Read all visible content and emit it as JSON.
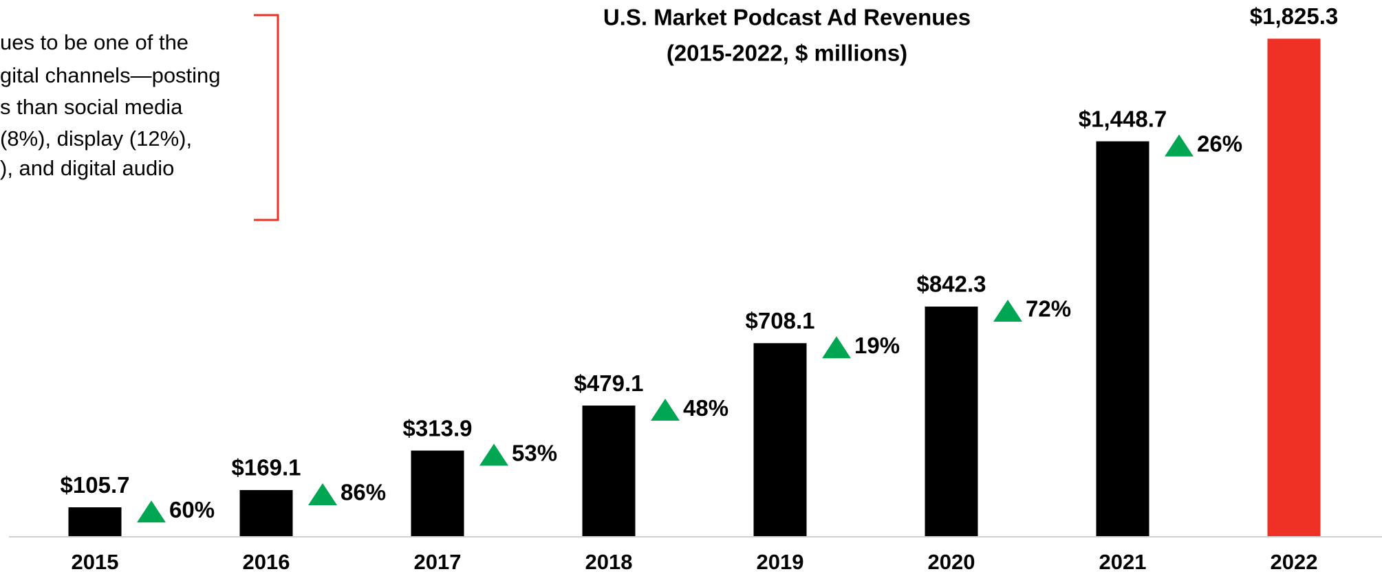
{
  "chart_data": {
    "type": "bar",
    "title": "U.S. Market Podcast Ad Revenues",
    "subtitle": "(2015-2022, $ millions)",
    "annotation_lines": [
      "ues to be one of the",
      "gital channels—posting",
      "s than social media",
      "(8%), display (12%),",
      "), and digital audio"
    ],
    "categories": [
      "2015",
      "2016",
      "2017",
      "2018",
      "2019",
      "2020",
      "2021",
      "2022"
    ],
    "values": [
      105.7,
      169.1,
      313.9,
      479.1,
      708.1,
      842.3,
      1448.7,
      1825.3
    ],
    "value_labels": [
      "$105.7",
      "$169.1",
      "$313.9",
      "$479.1",
      "$708.1",
      "$842.3",
      "$1,448.7",
      "$1,825.3"
    ],
    "colors": [
      "#000000",
      "#000000",
      "#000000",
      "#000000",
      "#000000",
      "#000000",
      "#000000",
      "#ee3124"
    ],
    "growth_values": [
      60,
      86,
      53,
      48,
      19,
      72,
      26
    ],
    "growth_labels": [
      "60%",
      "86%",
      "53%",
      "48%",
      "19%",
      "72%",
      "26%"
    ],
    "growth_color": "#00a651",
    "ylim": [
      0,
      2000
    ],
    "grid": false
  }
}
